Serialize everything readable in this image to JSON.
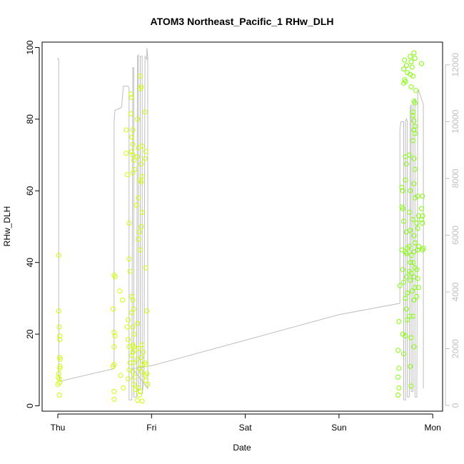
{
  "chart_data": {
    "type": "scatter",
    "title": "ATOM3 Northeast_Pacific_1 RHw_DLH",
    "xlabel": "Date",
    "ylabel": "RHw_DLH",
    "x_ticks": [
      "Thu",
      "Fri",
      "Sat",
      "Sun",
      "Mon"
    ],
    "xlim_days": [
      -0.2,
      4.1
    ],
    "ylim": [
      -1.5,
      101.5
    ],
    "y_ticks": [
      0,
      20,
      40,
      60,
      80,
      100
    ],
    "y2lim": [
      -200,
      12800
    ],
    "y2_ticks": [
      0,
      2000,
      4000,
      6000,
      8000,
      10000,
      12000
    ],
    "grid": false,
    "legend": "none",
    "colors": {
      "points_early": "#ccff00",
      "points_late": "#80ff00",
      "line": "#bebebe",
      "axis": "#000000",
      "right_axis": "#bfbfbf"
    },
    "series": [
      {
        "kind": "points",
        "points": [
          [
            0.01,
            42.0
          ],
          [
            0.01,
            26.5
          ],
          [
            0.015,
            22.0
          ],
          [
            0.02,
            19.5
          ],
          [
            0.02,
            18.5
          ],
          [
            0.018,
            13.5
          ],
          [
            0.025,
            13.0
          ],
          [
            0.025,
            11.0
          ],
          [
            0.02,
            10.5
          ],
          [
            0.01,
            9.0
          ],
          [
            0.005,
            8.0
          ],
          [
            0.015,
            7.5
          ],
          [
            0.0,
            6.0
          ],
          [
            0.02,
            6.5
          ],
          [
            0.015,
            3.0
          ],
          [
            0.6,
            36.5
          ],
          [
            0.61,
            36.0
          ],
          [
            0.59,
            27.0
          ],
          [
            0.6,
            20.5
          ],
          [
            0.61,
            19.5
          ],
          [
            0.6,
            16.5
          ],
          [
            0.6,
            11.5
          ],
          [
            0.59,
            11.0
          ],
          [
            0.6,
            4.0
          ],
          [
            0.6,
            1.8
          ],
          [
            0.66,
            32.0
          ],
          [
            0.69,
            29.5
          ],
          [
            0.67,
            8.5
          ],
          [
            0.7,
            5.0
          ],
          [
            0.73,
            77.0
          ],
          [
            0.73,
            70.5
          ],
          [
            0.74,
            64.5
          ],
          [
            0.76,
            51.0
          ],
          [
            0.76,
            41.0
          ],
          [
            0.77,
            37.5
          ],
          [
            0.75,
            24.0
          ],
          [
            0.74,
            22.0
          ],
          [
            0.75,
            18.5
          ],
          [
            0.76,
            16.5
          ],
          [
            0.77,
            12.0
          ],
          [
            0.76,
            10.0
          ],
          [
            0.75,
            7.5
          ],
          [
            0.78,
            87.0
          ],
          [
            0.79,
            86.0
          ],
          [
            0.78,
            81.5
          ],
          [
            0.8,
            77.0
          ],
          [
            0.79,
            75.0
          ],
          [
            0.8,
            73.0
          ],
          [
            0.79,
            71.0
          ],
          [
            0.8,
            70.0
          ],
          [
            0.81,
            68.5
          ],
          [
            0.82,
            66.0
          ],
          [
            0.8,
            65.0
          ],
          [
            0.79,
            30.5
          ],
          [
            0.8,
            29.5
          ],
          [
            0.81,
            27.0
          ],
          [
            0.79,
            26.0
          ],
          [
            0.8,
            22.0
          ],
          [
            0.81,
            20.0
          ],
          [
            0.8,
            17.0
          ],
          [
            0.81,
            16.5
          ],
          [
            0.82,
            15.5
          ],
          [
            0.8,
            15.0
          ],
          [
            0.79,
            14.0
          ],
          [
            0.81,
            12.0
          ],
          [
            0.8,
            9.5
          ],
          [
            0.82,
            8.0
          ],
          [
            0.81,
            6.0
          ],
          [
            0.83,
            4.5
          ],
          [
            0.85,
            80.0
          ],
          [
            0.86,
            72.0
          ],
          [
            0.85,
            69.5
          ],
          [
            0.86,
            58.0
          ],
          [
            0.84,
            56.0
          ],
          [
            0.87,
            48.5
          ],
          [
            0.86,
            46.5
          ],
          [
            0.85,
            23.0
          ],
          [
            0.86,
            16.0
          ],
          [
            0.85,
            13.0
          ],
          [
            0.87,
            10.5
          ],
          [
            0.86,
            5.0
          ],
          [
            0.87,
            3.0
          ],
          [
            0.85,
            1.5
          ],
          [
            0.88,
            92.0
          ],
          [
            0.89,
            89.0
          ],
          [
            0.88,
            88.5
          ],
          [
            0.9,
            72.5
          ],
          [
            0.89,
            67.5
          ],
          [
            0.9,
            64.0
          ],
          [
            0.88,
            63.0
          ],
          [
            0.89,
            62.5
          ],
          [
            0.9,
            54.0
          ],
          [
            0.89,
            50.0
          ],
          [
            0.88,
            43.5
          ],
          [
            0.9,
            17.0
          ],
          [
            0.91,
            15.0
          ],
          [
            0.89,
            13.5
          ],
          [
            0.9,
            11.5
          ],
          [
            0.89,
            9.5
          ],
          [
            0.88,
            4.0
          ],
          [
            0.9,
            1.3
          ],
          [
            0.93,
            82.0
          ],
          [
            0.94,
            71.0
          ],
          [
            0.93,
            69.0
          ],
          [
            0.94,
            38.5
          ],
          [
            0.95,
            26.5
          ],
          [
            0.93,
            12.0
          ],
          [
            0.94,
            11.5
          ],
          [
            0.95,
            9.0
          ],
          [
            0.93,
            8.5
          ],
          [
            0.94,
            7.0
          ],
          [
            0.96,
            6.0
          ],
          [
            3.65,
            33.5
          ],
          [
            3.64,
            23.5
          ],
          [
            3.63,
            15.5
          ],
          [
            3.64,
            10.5
          ],
          [
            3.63,
            8.0
          ],
          [
            3.64,
            5.0
          ],
          [
            3.63,
            3.0
          ],
          [
            3.67,
            61.0
          ],
          [
            3.68,
            60.0
          ],
          [
            3.67,
            55.5
          ],
          [
            3.68,
            55.0
          ],
          [
            3.69,
            51.5
          ],
          [
            3.67,
            43.5
          ],
          [
            3.68,
            38.0
          ],
          [
            3.69,
            34.5
          ],
          [
            3.68,
            20.0
          ],
          [
            3.69,
            14.5
          ],
          [
            3.71,
            69.5
          ],
          [
            3.72,
            67.5
          ],
          [
            3.71,
            63.0
          ],
          [
            3.72,
            48.5
          ],
          [
            3.73,
            44.0
          ],
          [
            3.71,
            43.0
          ],
          [
            3.72,
            42.5
          ],
          [
            3.72,
            36.0
          ],
          [
            3.73,
            31.5
          ],
          [
            3.71,
            30.0
          ],
          [
            3.72,
            27.0
          ],
          [
            3.73,
            24.0
          ],
          [
            3.71,
            19.5
          ],
          [
            3.75,
            70.0
          ],
          [
            3.76,
            60.0
          ],
          [
            3.75,
            54.0
          ],
          [
            3.76,
            49.0
          ],
          [
            3.75,
            44.5
          ],
          [
            3.77,
            42.0
          ],
          [
            3.76,
            40.0
          ],
          [
            3.75,
            37.5
          ],
          [
            3.77,
            37.0
          ],
          [
            3.76,
            35.0
          ],
          [
            3.78,
            32.0
          ],
          [
            3.75,
            25.0
          ],
          [
            3.77,
            19.0
          ],
          [
            3.76,
            11.0
          ],
          [
            3.77,
            5.5
          ],
          [
            3.7,
            96.5
          ],
          [
            3.72,
            95.0
          ],
          [
            3.69,
            94.0
          ],
          [
            3.73,
            93.0
          ],
          [
            3.7,
            91.0
          ],
          [
            3.71,
            90.5
          ],
          [
            3.69,
            90.0
          ],
          [
            3.76,
            97.5
          ],
          [
            3.77,
            96.0
          ],
          [
            3.78,
            94.5
          ],
          [
            3.76,
            92.5
          ],
          [
            3.79,
            92.0
          ],
          [
            3.77,
            89.0
          ],
          [
            3.8,
            98.5
          ],
          [
            3.81,
            97.0
          ],
          [
            3.82,
            88.0
          ],
          [
            3.8,
            85.0
          ],
          [
            3.81,
            84.5
          ],
          [
            3.79,
            82.0
          ],
          [
            3.79,
            81.0
          ],
          [
            3.8,
            79.5
          ],
          [
            3.81,
            78.0
          ],
          [
            3.8,
            77.0
          ],
          [
            3.81,
            76.0
          ],
          [
            3.79,
            74.0
          ],
          [
            3.8,
            69.0
          ],
          [
            3.81,
            66.0
          ],
          [
            3.8,
            62.0
          ],
          [
            3.81,
            58.0
          ],
          [
            3.79,
            52.0
          ],
          [
            3.8,
            47.5
          ],
          [
            3.81,
            45.5
          ],
          [
            3.8,
            43.0
          ],
          [
            3.79,
            40.0
          ],
          [
            3.81,
            38.5
          ],
          [
            3.8,
            36.0
          ],
          [
            3.81,
            33.0
          ],
          [
            3.8,
            29.5
          ],
          [
            3.79,
            25.0
          ],
          [
            3.8,
            16.5
          ],
          [
            3.84,
            58.5
          ],
          [
            3.85,
            53.0
          ],
          [
            3.83,
            51.0
          ],
          [
            3.84,
            49.5
          ],
          [
            3.85,
            44.5
          ],
          [
            3.84,
            43.5
          ],
          [
            3.83,
            38.0
          ],
          [
            3.84,
            35.5
          ],
          [
            3.85,
            33.0
          ],
          [
            3.83,
            30.5
          ],
          [
            3.88,
            95.5
          ],
          [
            3.89,
            58.5
          ],
          [
            3.88,
            55.0
          ],
          [
            3.89,
            53.0
          ],
          [
            3.88,
            52.0
          ],
          [
            3.89,
            51.0
          ],
          [
            3.9,
            44.0
          ],
          [
            3.89,
            43.5
          ]
        ]
      },
      {
        "kind": "line",
        "axis": "right",
        "points": [
          [
            0.0,
            12250
          ],
          [
            0.0,
            12200
          ],
          [
            0.01,
            12200
          ],
          [
            0.01,
            1000
          ],
          [
            0.02,
            1000
          ],
          [
            0.02,
            850
          ],
          [
            0.6,
            1300
          ],
          [
            0.6,
            4000
          ],
          [
            0.6,
            10000
          ],
          [
            0.61,
            10400
          ],
          [
            0.65,
            10450
          ],
          [
            0.68,
            10500
          ],
          [
            0.7,
            11250
          ],
          [
            0.75,
            11250
          ],
          [
            0.76,
            11200
          ],
          [
            0.76,
            200
          ],
          [
            0.79,
            200
          ],
          [
            0.8,
            11900
          ],
          [
            0.81,
            11900
          ],
          [
            0.81,
            300
          ],
          [
            0.84,
            300
          ],
          [
            0.85,
            12300
          ],
          [
            0.86,
            12350
          ],
          [
            0.86,
            500
          ],
          [
            0.88,
            600
          ],
          [
            0.88,
            12300
          ],
          [
            0.9,
            12300
          ],
          [
            0.9,
            400
          ],
          [
            0.92,
            1000
          ],
          [
            0.93,
            12300
          ],
          [
            0.95,
            12200
          ],
          [
            0.95,
            12600
          ],
          [
            0.96,
            12300
          ],
          [
            0.96,
            600
          ],
          [
            0.8,
            1300
          ],
          [
            1.0,
            1400
          ],
          [
            2.0,
            2300
          ],
          [
            3.0,
            3200
          ],
          [
            3.65,
            3600
          ],
          [
            3.65,
            9700
          ],
          [
            3.66,
            10000
          ],
          [
            3.69,
            10000
          ],
          [
            3.69,
            200
          ],
          [
            3.71,
            200
          ],
          [
            3.71,
            10000
          ],
          [
            3.72,
            10100
          ],
          [
            3.73,
            10000
          ],
          [
            3.73,
            300
          ],
          [
            3.75,
            300
          ],
          [
            3.76,
            10500
          ],
          [
            3.77,
            10600
          ],
          [
            3.77,
            500
          ],
          [
            3.79,
            500
          ],
          [
            3.79,
            10700
          ],
          [
            3.81,
            10800
          ],
          [
            3.81,
            300
          ],
          [
            3.83,
            300
          ],
          [
            3.84,
            11000
          ],
          [
            3.85,
            11100
          ],
          [
            3.89,
            10700
          ],
          [
            3.9,
            10600
          ],
          [
            3.9,
            600
          ]
        ]
      }
    ]
  }
}
